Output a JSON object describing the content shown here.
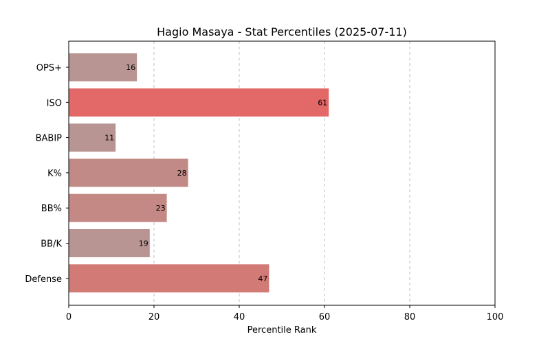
{
  "chart_data": {
    "type": "bar",
    "orientation": "horizontal",
    "title": "Hagio Masaya - Stat Percentiles (2025-07-11)",
    "xlabel": "Percentile Rank",
    "ylabel": "",
    "xlim": [
      0,
      100
    ],
    "xticks": [
      0,
      20,
      40,
      60,
      80,
      100
    ],
    "grid": "x-dashed",
    "categories": [
      "OPS+",
      "ISO",
      "BABIP",
      "K%",
      "BB%",
      "BB/K",
      "Defense"
    ],
    "values": [
      16,
      61,
      11,
      28,
      23,
      19,
      47
    ],
    "colors": [
      "#b89593",
      "#e36868",
      "#b89593",
      "#c18a86",
      "#c48885",
      "#b89593",
      "#d27a76"
    ]
  }
}
